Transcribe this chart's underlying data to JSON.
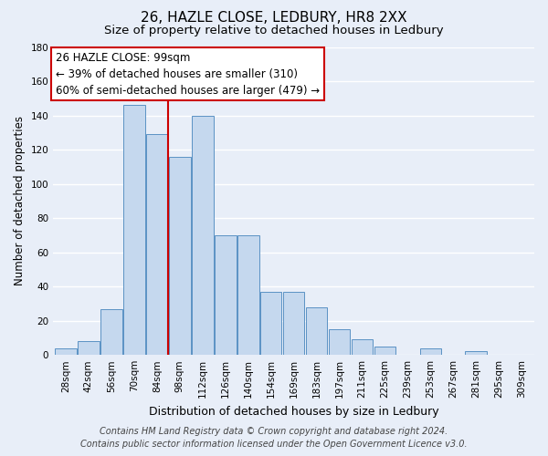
{
  "title": "26, HAZLE CLOSE, LEDBURY, HR8 2XX",
  "subtitle": "Size of property relative to detached houses in Ledbury",
  "xlabel": "Distribution of detached houses by size in Ledbury",
  "ylabel": "Number of detached properties",
  "categories": [
    "28sqm",
    "42sqm",
    "56sqm",
    "70sqm",
    "84sqm",
    "98sqm",
    "112sqm",
    "126sqm",
    "140sqm",
    "154sqm",
    "169sqm",
    "183sqm",
    "197sqm",
    "211sqm",
    "225sqm",
    "239sqm",
    "253sqm",
    "267sqm",
    "281sqm",
    "295sqm",
    "309sqm"
  ],
  "values": [
    4,
    8,
    27,
    146,
    129,
    116,
    140,
    70,
    70,
    37,
    37,
    28,
    15,
    9,
    5,
    0,
    4,
    0,
    2,
    0,
    0
  ],
  "bar_color": "#c5d8ee",
  "bar_edge_color": "#5b92c4",
  "vline_color": "#cc0000",
  "vline_x": 4.5,
  "ylim": [
    0,
    180
  ],
  "yticks": [
    0,
    20,
    40,
    60,
    80,
    100,
    120,
    140,
    160,
    180
  ],
  "annotation_box_text": "26 HAZLE CLOSE: 99sqm\n← 39% of detached houses are smaller (310)\n60% of semi-detached houses are larger (479) →",
  "annotation_box_facecolor": "#ffffff",
  "annotation_box_edgecolor": "#cc0000",
  "footer_line1": "Contains HM Land Registry data © Crown copyright and database right 2024.",
  "footer_line2": "Contains public sector information licensed under the Open Government Licence v3.0.",
  "background_color": "#e8eef8",
  "grid_color": "#ffffff",
  "title_fontsize": 11,
  "subtitle_fontsize": 9.5,
  "ylabel_fontsize": 8.5,
  "xlabel_fontsize": 9,
  "tick_fontsize": 7.5,
  "ann_fontsize": 8.5,
  "footer_fontsize": 7
}
